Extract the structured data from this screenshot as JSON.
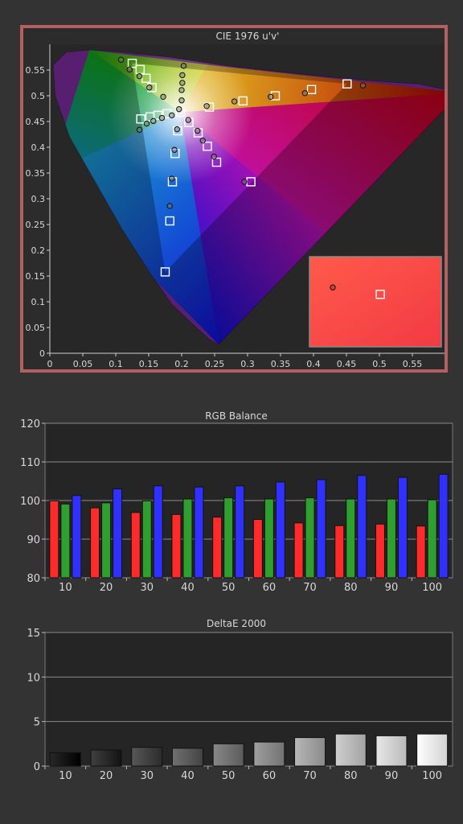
{
  "chart_data": [
    {
      "type": "scatter",
      "title": "CIE 1976 u'v'",
      "xlim": [
        0,
        0.6
      ],
      "ylim": [
        0,
        0.6
      ],
      "x_ticks": [
        "0",
        "0.05",
        "0.1",
        "0.15",
        "0.2",
        "0.25",
        "0.3",
        "0.35",
        "0.4",
        "0.45",
        "0.5",
        "0.55"
      ],
      "y_ticks": [
        "0",
        "0.05",
        "0.1",
        "0.15",
        "0.2",
        "0.25",
        "0.3",
        "0.35",
        "0.4",
        "0.45",
        "0.5",
        "0.55"
      ],
      "gamut_triangle": [
        [
          0.451,
          0.523
        ],
        [
          0.125,
          0.563
        ],
        [
          0.175,
          0.158
        ]
      ],
      "white_point": [
        0.198,
        0.468
      ],
      "targets": [
        [
          0.125,
          0.563
        ],
        [
          0.137,
          0.551
        ],
        [
          0.146,
          0.534
        ],
        [
          0.155,
          0.516
        ],
        [
          0.138,
          0.455
        ],
        [
          0.152,
          0.459
        ],
        [
          0.164,
          0.462
        ],
        [
          0.178,
          0.465
        ],
        [
          0.198,
          0.468
        ],
        [
          0.194,
          0.432
        ],
        [
          0.19,
          0.388
        ],
        [
          0.186,
          0.333
        ],
        [
          0.182,
          0.257
        ],
        [
          0.175,
          0.158
        ],
        [
          0.211,
          0.448
        ],
        [
          0.225,
          0.428
        ],
        [
          0.239,
          0.402
        ],
        [
          0.253,
          0.371
        ],
        [
          0.305,
          0.333
        ],
        [
          0.242,
          0.478
        ],
        [
          0.293,
          0.49
        ],
        [
          0.342,
          0.5
        ],
        [
          0.397,
          0.512
        ],
        [
          0.451,
          0.523
        ]
      ],
      "measured": [
        [
          0.108,
          0.57
        ],
        [
          0.121,
          0.551
        ],
        [
          0.136,
          0.538
        ],
        [
          0.151,
          0.516
        ],
        [
          0.172,
          0.498
        ],
        [
          0.136,
          0.434
        ],
        [
          0.147,
          0.446
        ],
        [
          0.157,
          0.451
        ],
        [
          0.17,
          0.457
        ],
        [
          0.185,
          0.462
        ],
        [
          0.2,
          0.491
        ],
        [
          0.2,
          0.511
        ],
        [
          0.201,
          0.525
        ],
        [
          0.201,
          0.54
        ],
        [
          0.203,
          0.558
        ],
        [
          0.196,
          0.474
        ],
        [
          0.193,
          0.435
        ],
        [
          0.189,
          0.395
        ],
        [
          0.185,
          0.339
        ],
        [
          0.182,
          0.286
        ],
        [
          0.21,
          0.453
        ],
        [
          0.224,
          0.432
        ],
        [
          0.232,
          0.413
        ],
        [
          0.249,
          0.382
        ],
        [
          0.295,
          0.333
        ],
        [
          0.238,
          0.48
        ],
        [
          0.28,
          0.489
        ],
        [
          0.335,
          0.498
        ],
        [
          0.387,
          0.505
        ],
        [
          0.475,
          0.52
        ]
      ],
      "inset_measured": [
        0.431,
        0.112
      ],
      "inset_target": [
        0.494,
        0.099
      ]
    },
    {
      "type": "bar",
      "title": "RGB Balance",
      "categories": [
        "10",
        "20",
        "30",
        "40",
        "50",
        "60",
        "70",
        "80",
        "90",
        "100"
      ],
      "series": [
        {
          "color": "#ff2b2b",
          "values": [
            99.9,
            98.1,
            96.9,
            96.4,
            95.7,
            95.1,
            94.2,
            93.5,
            93.9,
            93.4
          ]
        },
        {
          "color": "#2fa02f",
          "values": [
            99.1,
            99.4,
            99.9,
            100.4,
            100.7,
            100.4,
            100.7,
            100.4,
            100.4,
            100.2
          ]
        },
        {
          "color": "#3131ff",
          "values": [
            101.3,
            103.0,
            103.8,
            103.5,
            103.8,
            104.8,
            105.4,
            106.5,
            106.0,
            106.8
          ]
        }
      ],
      "ylim": [
        80,
        120
      ],
      "y_ticks": [
        "80",
        "90",
        "100",
        "110",
        "120"
      ]
    },
    {
      "type": "bar",
      "title": "DeltaE 2000",
      "categories": [
        "10",
        "20",
        "30",
        "40",
        "50",
        "60",
        "70",
        "80",
        "90",
        "100"
      ],
      "values": [
        1.5,
        1.8,
        2.1,
        2.0,
        2.5,
        2.7,
        3.2,
        3.6,
        3.4,
        3.6
      ],
      "ylim": [
        0,
        15
      ],
      "y_ticks": [
        "0",
        "5",
        "10",
        "15"
      ]
    }
  ]
}
